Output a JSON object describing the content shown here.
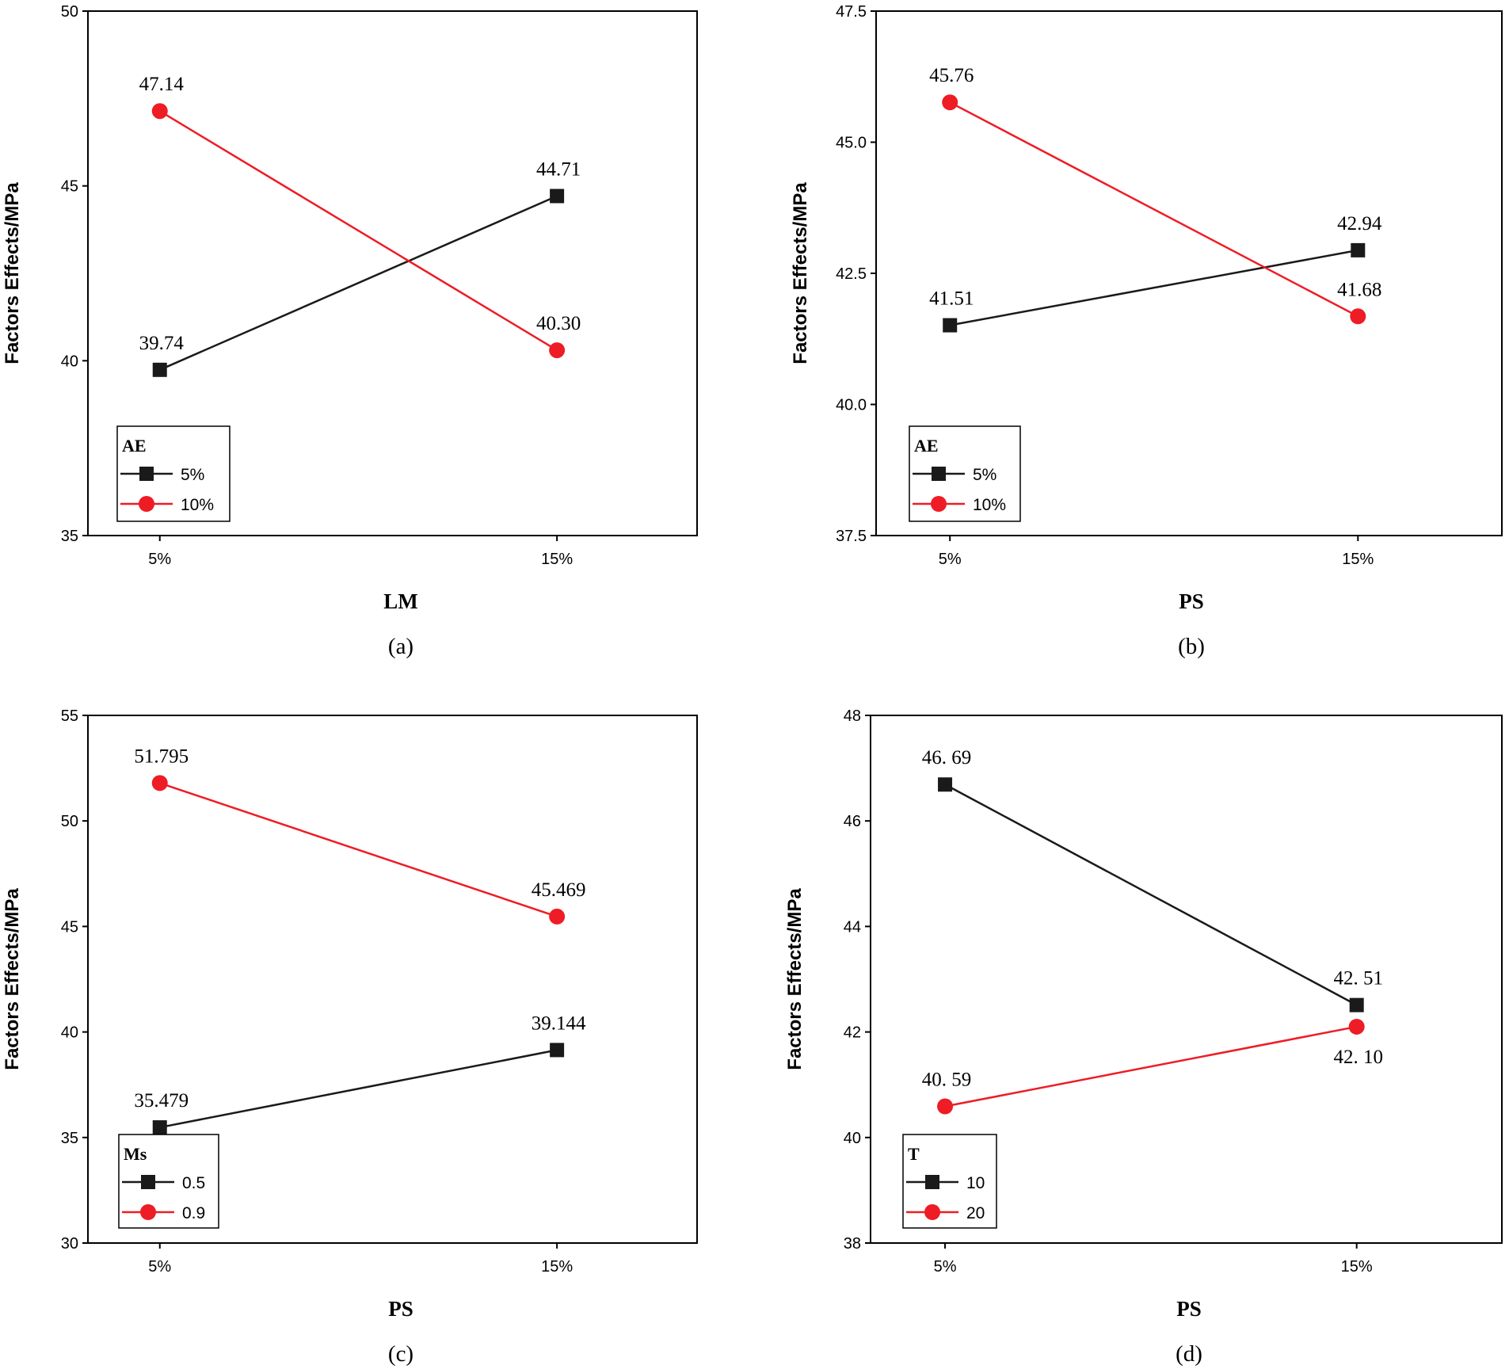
{
  "colors": {
    "series_black": "#1a1a1a",
    "series_red": "#ee1c25",
    "axis": "#000000"
  },
  "chart_data": [
    {
      "type": "line",
      "panel": "a",
      "caption": "(a)",
      "title": "",
      "xlabel": "LM",
      "ylabel": "Factors Effects/MPa",
      "categories": [
        "5%",
        "15%"
      ],
      "ylim": [
        35,
        50
      ],
      "yticks": [
        35,
        40,
        45,
        50
      ],
      "ytick_labels": [
        "35",
        "40",
        "45",
        "50"
      ],
      "legend": {
        "title": "AE",
        "position": "bottom-left"
      },
      "series": [
        {
          "name": "5%",
          "marker": "square",
          "color": "#1a1a1a",
          "values": [
            39.74,
            44.71
          ],
          "labels": [
            "39.74",
            "44.71"
          ],
          "label_pos": [
            "above",
            "above"
          ]
        },
        {
          "name": "10%",
          "marker": "circle",
          "color": "#ee1c25",
          "values": [
            47.14,
            40.3
          ],
          "labels": [
            "47.14",
            "40.30"
          ],
          "label_pos": [
            "above",
            "above"
          ]
        }
      ]
    },
    {
      "type": "line",
      "panel": "b",
      "caption": "(b)",
      "title": "",
      "xlabel": "PS",
      "ylabel": "Factors Effects/MPa",
      "categories": [
        "5%",
        "15%"
      ],
      "ylim": [
        37.5,
        47.5
      ],
      "yticks": [
        37.5,
        40.0,
        42.5,
        45.0,
        47.5
      ],
      "ytick_labels": [
        "37.5",
        "40.0",
        "42.5",
        "45.0",
        "47.5"
      ],
      "legend": {
        "title": "AE",
        "position": "bottom-left"
      },
      "series": [
        {
          "name": "5%",
          "marker": "square",
          "color": "#1a1a1a",
          "values": [
            41.51,
            42.94
          ],
          "labels": [
            "41.51",
            "42.94"
          ],
          "label_pos": [
            "above",
            "above"
          ]
        },
        {
          "name": "10%",
          "marker": "circle",
          "color": "#ee1c25",
          "values": [
            45.76,
            41.68
          ],
          "labels": [
            "45.76",
            "41.68"
          ],
          "label_pos": [
            "above",
            "above"
          ]
        }
      ]
    },
    {
      "type": "line",
      "panel": "c",
      "caption": "(c)",
      "title": "",
      "xlabel": "PS",
      "ylabel": "Factors Effects/MPa",
      "categories": [
        "5%",
        "15%"
      ],
      "ylim": [
        30,
        55
      ],
      "yticks": [
        30,
        35,
        40,
        45,
        50,
        55
      ],
      "ytick_labels": [
        "30",
        "35",
        "40",
        "45",
        "50",
        "55"
      ],
      "legend": {
        "title": "Ms",
        "position": "bottom-left"
      },
      "series": [
        {
          "name": "0.5",
          "marker": "square",
          "color": "#1a1a1a",
          "values": [
            35.479,
            39.144
          ],
          "labels": [
            "35.479",
            "39.144"
          ],
          "label_pos": [
            "above",
            "above"
          ]
        },
        {
          "name": "0.9",
          "marker": "circle",
          "color": "#ee1c25",
          "values": [
            51.795,
            45.469
          ],
          "labels": [
            "51.795",
            "45.469"
          ],
          "label_pos": [
            "above",
            "above"
          ]
        }
      ]
    },
    {
      "type": "line",
      "panel": "d",
      "caption": "(d)",
      "title": "",
      "xlabel": "PS",
      "ylabel": "Factors Effects/MPa",
      "categories": [
        "5%",
        "15%"
      ],
      "ylim": [
        38,
        48
      ],
      "yticks": [
        38,
        40,
        42,
        44,
        46,
        48
      ],
      "ytick_labels": [
        "38",
        "40",
        "42",
        "44",
        "46",
        "48"
      ],
      "legend": {
        "title": "T",
        "position": "bottom-left"
      },
      "series": [
        {
          "name": "10",
          "marker": "square",
          "color": "#1a1a1a",
          "values": [
            46.69,
            42.51
          ],
          "labels": [
            "46. 69",
            "42. 51"
          ],
          "label_pos": [
            "above",
            "above"
          ]
        },
        {
          "name": "20",
          "marker": "circle",
          "color": "#ee1c25",
          "values": [
            40.59,
            42.1
          ],
          "labels": [
            "40. 59",
            "42. 10"
          ],
          "label_pos": [
            "above",
            "below"
          ]
        }
      ]
    }
  ]
}
